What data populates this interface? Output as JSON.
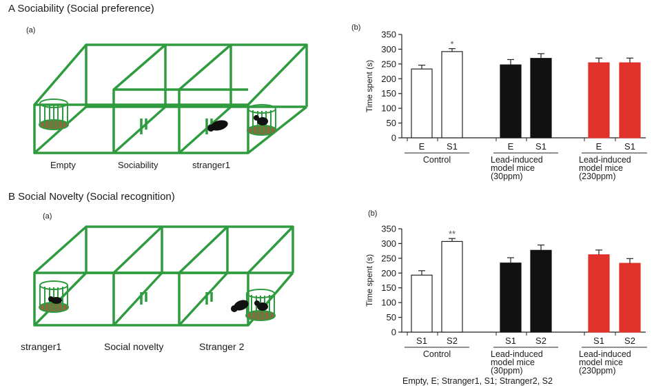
{
  "panel_a": {
    "title": "A   Sociability (Social preference)",
    "diagram_label": "(a)",
    "chart_label": "(b)",
    "chamber_labels": [
      "Empty",
      "Sociability",
      "stranger1"
    ]
  },
  "panel_b": {
    "title": "B   Social Novelty (Social recognition)",
    "diagram_label": "(a)",
    "chart_label": "(b)",
    "chamber_labels": [
      "stranger1",
      "Social novelty",
      "Stranger 2"
    ]
  },
  "footnote": "Empty, E;  Stranger1, S1; Stranger2, S2",
  "colors": {
    "cage_green": "#2e9b3e",
    "bedding": "#8a6b3f",
    "control_fill": "#ffffff",
    "ppm30_fill": "#111111",
    "ppm230_fill": "#e0312b"
  },
  "chart_data": [
    {
      "type": "bar",
      "ylabel": "Time spent (s)",
      "ylim": [
        0,
        350
      ],
      "yticks": [
        0,
        50,
        100,
        150,
        200,
        250,
        300,
        350
      ],
      "groups": [
        {
          "label": [
            "Control"
          ],
          "bars": [
            {
              "label": "E",
              "value": 233,
              "error": 13,
              "color": "#ffffff",
              "sig": ""
            },
            {
              "label": "S1",
              "value": 292,
              "error": 10,
              "color": "#ffffff",
              "sig": "*"
            }
          ]
        },
        {
          "label": [
            "Lead-induced",
            "model mice",
            "(30ppm)"
          ],
          "bars": [
            {
              "label": "E",
              "value": 247,
              "error": 18,
              "color": "#111111",
              "sig": ""
            },
            {
              "label": "S1",
              "value": 269,
              "error": 16,
              "color": "#111111",
              "sig": ""
            }
          ]
        },
        {
          "label": [
            "Lead-induced",
            "model mice",
            "(230ppm)"
          ],
          "bars": [
            {
              "label": "E",
              "value": 254,
              "error": 16,
              "color": "#e0312b",
              "sig": ""
            },
            {
              "label": "S1",
              "value": 254,
              "error": 16,
              "color": "#e0312b",
              "sig": ""
            }
          ]
        }
      ]
    },
    {
      "type": "bar",
      "ylabel": "Time spent (s)",
      "ylim": [
        0,
        350
      ],
      "yticks": [
        0,
        50,
        100,
        150,
        200,
        250,
        300,
        350
      ],
      "groups": [
        {
          "label": [
            "Control"
          ],
          "bars": [
            {
              "label": "S1",
              "value": 193,
              "error": 15,
              "color": "#ffffff",
              "sig": ""
            },
            {
              "label": "S2",
              "value": 307,
              "error": 10,
              "color": "#ffffff",
              "sig": "**"
            }
          ]
        },
        {
          "label": [
            "Lead-induced",
            "model mice",
            "(30ppm)"
          ],
          "bars": [
            {
              "label": "S1",
              "value": 234,
              "error": 18,
              "color": "#111111",
              "sig": ""
            },
            {
              "label": "S2",
              "value": 277,
              "error": 18,
              "color": "#111111",
              "sig": ""
            }
          ]
        },
        {
          "label": [
            "Lead-induced",
            "model mice",
            "(230ppm)"
          ],
          "bars": [
            {
              "label": "S1",
              "value": 262,
              "error": 16,
              "color": "#e0312b",
              "sig": ""
            },
            {
              "label": "S2",
              "value": 233,
              "error": 16,
              "color": "#e0312b",
              "sig": ""
            }
          ]
        }
      ]
    }
  ]
}
